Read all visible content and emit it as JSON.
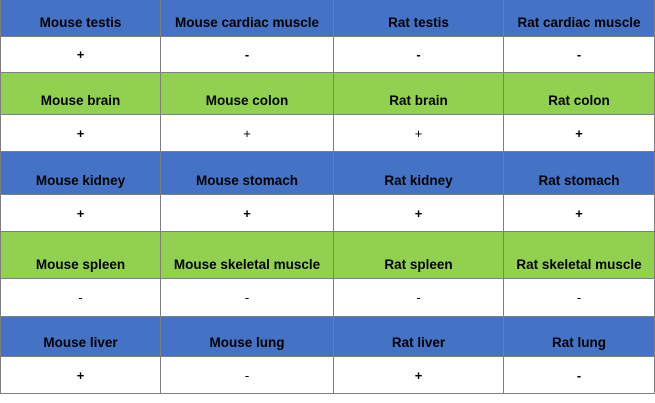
{
  "colors": {
    "blue": "#4472c4",
    "green": "#92d050"
  },
  "blocks": [
    {
      "color": "blue",
      "headers": [
        "Mouse testis",
        "Mouse cardiac muscle",
        "Rat testis",
        "Rat cardiac muscle"
      ],
      "values": [
        "+",
        "-",
        "-",
        "-"
      ],
      "bold_values": [
        true,
        true,
        true,
        true
      ]
    },
    {
      "color": "green",
      "headers": [
        "Mouse brain",
        "Mouse colon",
        "Rat brain",
        "Rat colon"
      ],
      "values": [
        "+",
        "+",
        "+",
        "+"
      ],
      "bold_values": [
        true,
        false,
        false,
        true
      ]
    },
    {
      "color": "blue",
      "headers": [
        "Mouse kidney",
        "Mouse stomach",
        "Rat kidney",
        "Rat stomach"
      ],
      "values": [
        "+",
        "+",
        "+",
        "+"
      ],
      "bold_values": [
        true,
        true,
        true,
        true
      ]
    },
    {
      "color": "green",
      "headers": [
        "Mouse spleen",
        "Mouse skeletal muscle",
        "Rat spleen",
        "Rat skeletal muscle"
      ],
      "values": [
        "-",
        "-",
        "-",
        "-"
      ],
      "bold_values": [
        false,
        false,
        false,
        false
      ]
    },
    {
      "color": "blue",
      "headers": [
        "Mouse liver",
        "Mouse lung",
        "Rat liver",
        "Rat lung"
      ],
      "values": [
        "+",
        "-",
        "+",
        "-"
      ],
      "bold_values": [
        true,
        false,
        true,
        true
      ]
    }
  ]
}
